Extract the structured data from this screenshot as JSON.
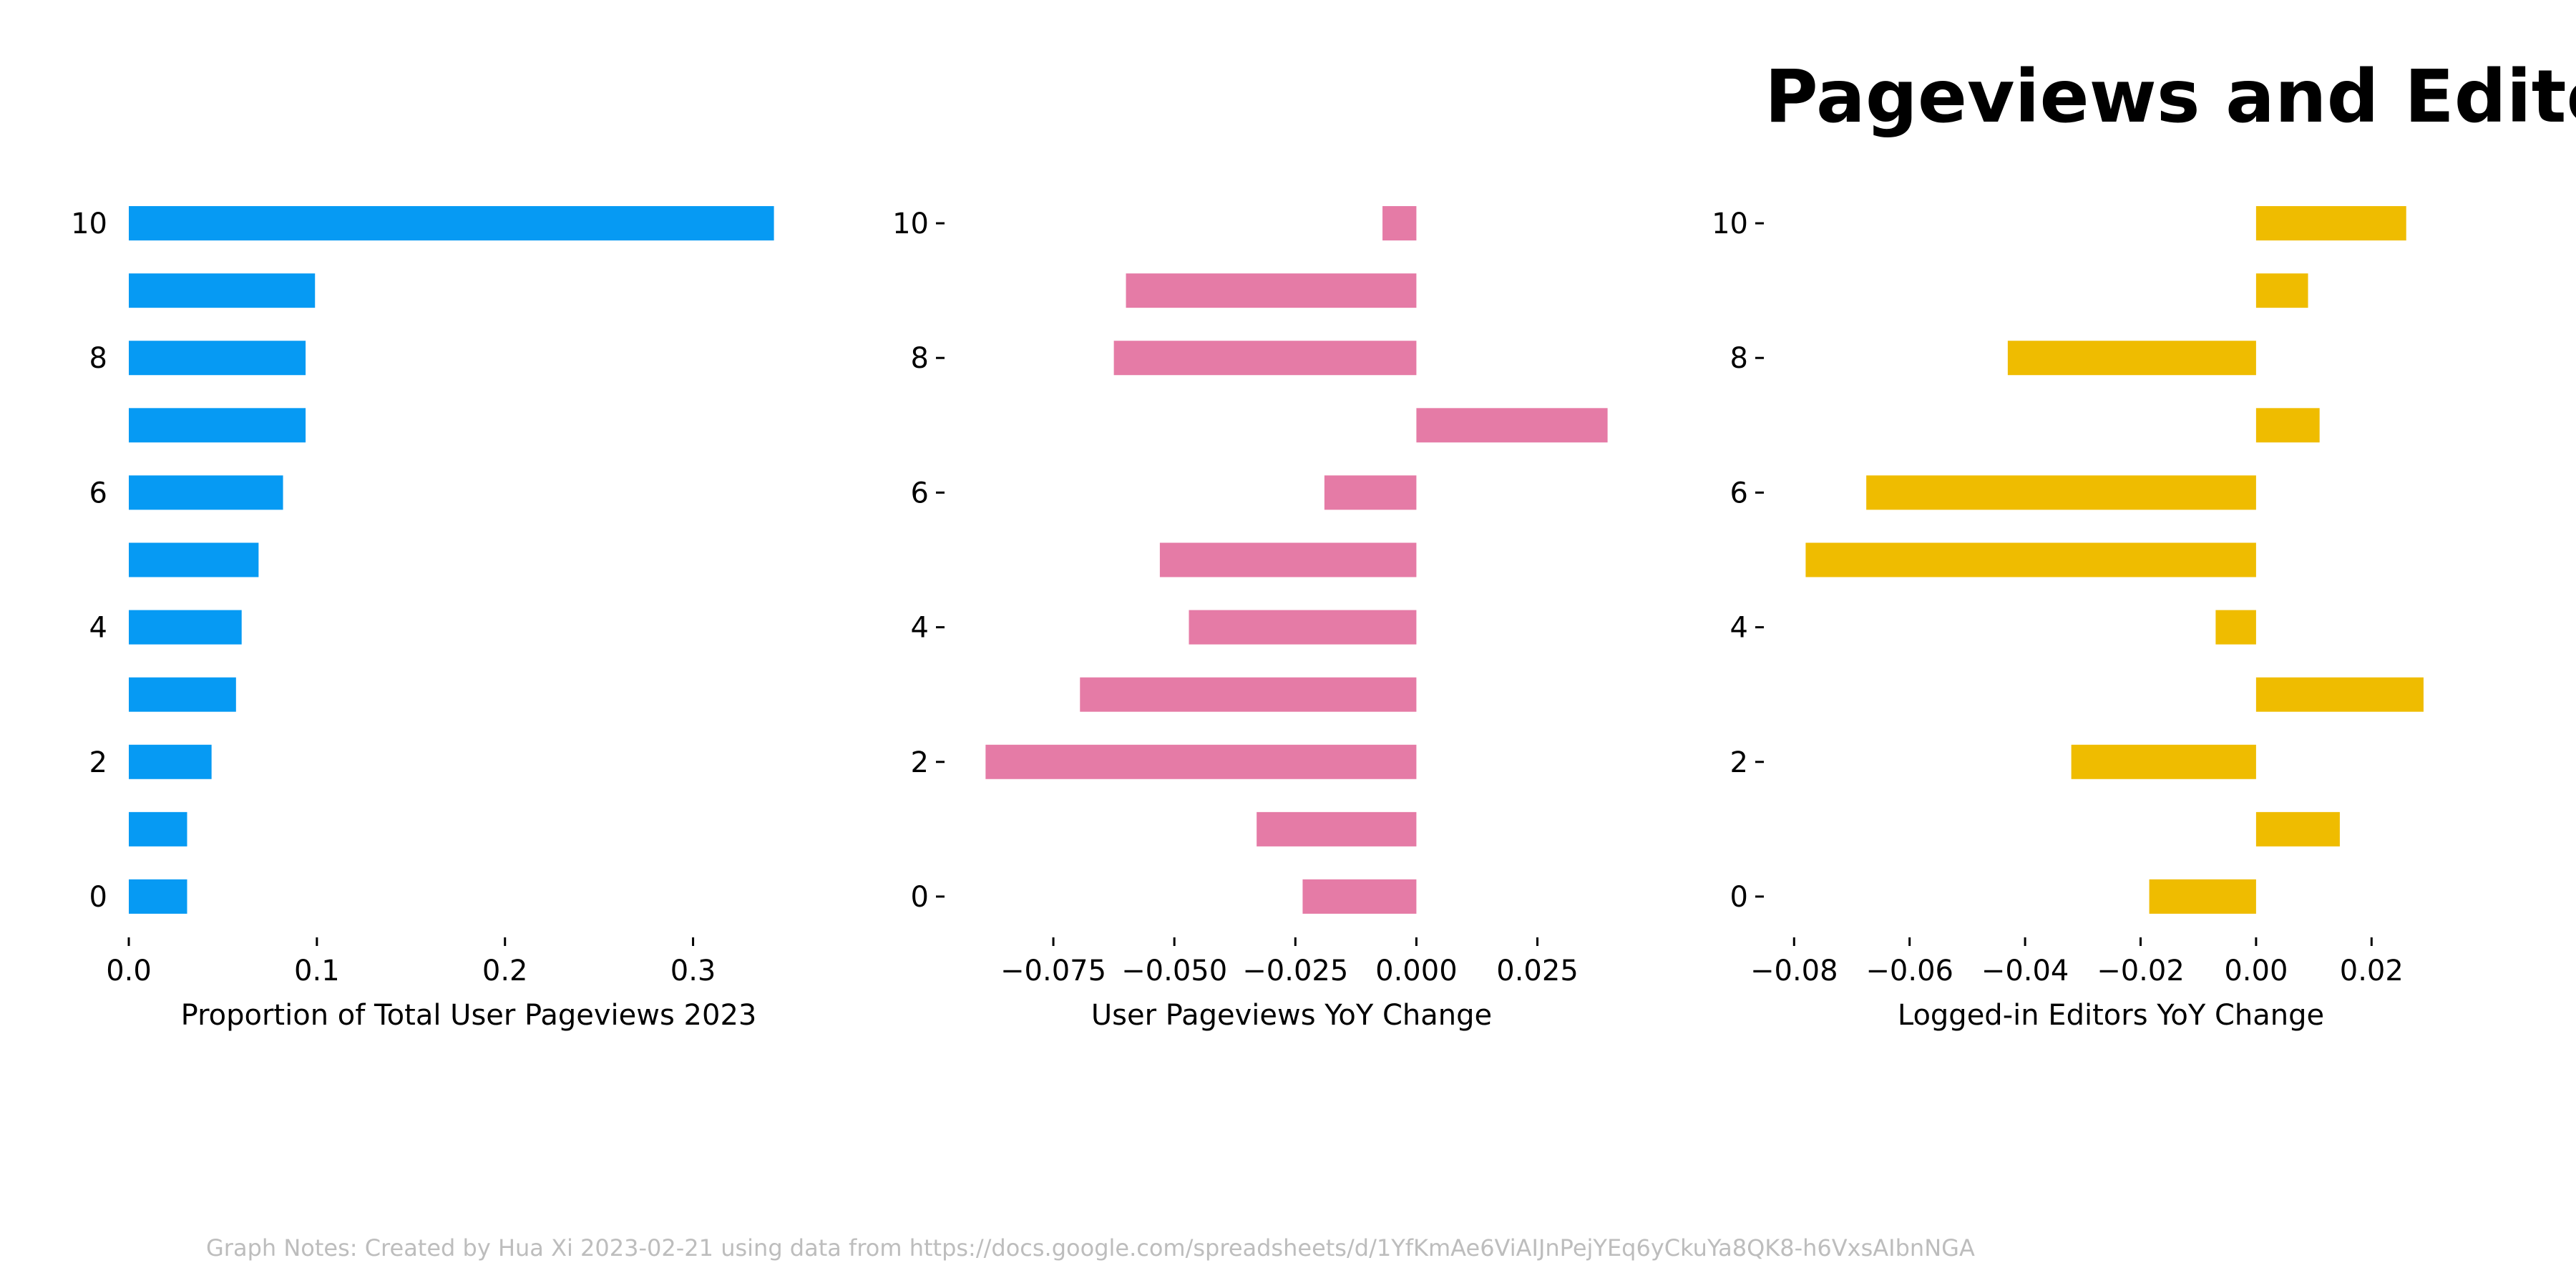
{
  "title": "Pageviews and Editors",
  "notes": "Graph Notes: Created by Hua Xi 2023-02-21 using data from https://docs.google.com/spreadsheets/d/1YfKmAe6ViAIJnPejYEq6yCkuYa8QK8-h6VxsAIbnNGA",
  "chart_data": [
    {
      "type": "bar",
      "orientation": "horizontal",
      "xlabel": "Proportion of Total User Pageviews 2023",
      "color": "#069AF3",
      "categories": [
        0,
        1,
        2,
        3,
        4,
        5,
        6,
        7,
        8,
        9,
        10
      ],
      "values": [
        0.031,
        0.031,
        0.044,
        0.057,
        0.06,
        0.069,
        0.082,
        0.094,
        0.094,
        0.099,
        0.343
      ],
      "xlim": [
        0,
        0.35
      ],
      "xticks": [
        0.0,
        0.1,
        0.2,
        0.3
      ],
      "xtick_labels": [
        "0.0",
        "0.1",
        "0.2",
        "0.3"
      ],
      "yticks": [
        0,
        2,
        4,
        6,
        8,
        10
      ],
      "ytick_labels": [
        "0",
        "2",
        "4",
        "6",
        "8",
        "10"
      ]
    },
    {
      "type": "bar",
      "orientation": "horizontal",
      "xlabel": "User Pageviews YoY Change",
      "color": "#E57BA6",
      "categories": [
        0,
        1,
        2,
        3,
        4,
        5,
        6,
        7,
        8,
        9,
        10
      ],
      "values": [
        -0.0235,
        -0.033,
        -0.089,
        -0.0695,
        -0.047,
        -0.053,
        -0.019,
        0.0395,
        -0.0625,
        -0.06,
        -0.007
      ],
      "xlim": [
        -0.096,
        0.04
      ],
      "xticks": [
        -0.075,
        -0.05,
        -0.025,
        0.0,
        0.025
      ],
      "xtick_labels": [
        "−0.075",
        "−0.050",
        "−0.025",
        "0.000",
        "0.025"
      ],
      "yticks": [
        0,
        2,
        4,
        6,
        8,
        10
      ],
      "ytick_labels": [
        "0",
        "2",
        "4",
        "6",
        "8",
        "10"
      ]
    },
    {
      "type": "bar",
      "orientation": "horizontal",
      "xlabel": "Logged-in Editors YoY Change",
      "color": "#EFBC00",
      "categories": [
        0,
        1,
        2,
        3,
        4,
        5,
        6,
        7,
        8,
        9,
        10
      ],
      "values": [
        -0.0185,
        0.0145,
        -0.032,
        0.029,
        -0.007,
        -0.078,
        -0.0675,
        0.011,
        -0.043,
        0.009,
        0.026
      ],
      "xlim": [
        -0.084,
        0.03
      ],
      "xticks": [
        -0.08,
        -0.06,
        -0.04,
        -0.02,
        0.0,
        0.02
      ],
      "xtick_labels": [
        "−0.08",
        "−0.06",
        "−0.04",
        "−0.02",
        "0.00",
        "0.02"
      ],
      "yticks": [
        0,
        2,
        4,
        6,
        8,
        10
      ],
      "ytick_labels": [
        "0",
        "2",
        "4",
        "6",
        "8",
        "10"
      ]
    }
  ]
}
